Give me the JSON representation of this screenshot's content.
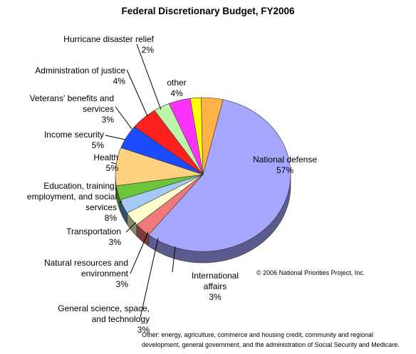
{
  "chart_data": {
    "type": "pie",
    "title": "Federal Discretionary Budget, FY2006",
    "unit": "%",
    "slices": [
      {
        "name": "National defense",
        "value": 57,
        "pct": "57%",
        "color": "#a7a7ff",
        "side": "#5b5b8f"
      },
      {
        "name": "International affairs",
        "value": 3,
        "pct": "3%",
        "color": "#f07a7a",
        "side": "#7a3b3b"
      },
      {
        "name": "General science, space, and technology",
        "value": 3,
        "pct": "3%",
        "color": "#ffffcc",
        "side": "#8a8a6a"
      },
      {
        "name": "Natural resources and environment",
        "value": 3,
        "pct": "3%",
        "color": "#a7c9f7",
        "side": "#2f4f6f"
      },
      {
        "name": "Transportation",
        "value": 3,
        "pct": "3%",
        "color": "#6bc63b",
        "side": "#3a6e1f"
      },
      {
        "name": "Education, training, employment, and social services",
        "value": 8,
        "pct": "8%",
        "color": "#ffd27f",
        "side": "#8a6a3a"
      },
      {
        "name": "Health",
        "value": 5,
        "pct": "5%",
        "color": "#1d4bff",
        "side": "#142a8a"
      },
      {
        "name": "Income security",
        "value": 5,
        "pct": "5%",
        "color": "#ff2020",
        "side": "#8a1010"
      },
      {
        "name": "Veterans' benefits and services",
        "value": 3,
        "pct": "3%",
        "color": "#bff5a8",
        "side": "#6a8a5c"
      },
      {
        "name": "Administration of justice",
        "value": 4,
        "pct": "4%",
        "color": "#ff33ff",
        "side": "#8a1d8a"
      },
      {
        "name": "Hurricane disaster relief",
        "value": 2,
        "pct": "2%",
        "color": "#ffff00",
        "side": "#8a8a00"
      },
      {
        "name": "other",
        "value": 4,
        "pct": "4%",
        "color": "#ffb347",
        "side": "#8a5a1d"
      }
    ],
    "labels": [
      {
        "lines": [
          "National defense"
        ],
        "pct": "57%"
      },
      {
        "lines": [
          "International",
          "affairs"
        ],
        "pct": "3%"
      },
      {
        "lines": [
          "General science, space,",
          "and technology"
        ],
        "pct": "3%"
      },
      {
        "lines": [
          "Natural resources and",
          "environment"
        ],
        "pct": "3%"
      },
      {
        "lines": [
          "Transportation"
        ],
        "pct": "3%"
      },
      {
        "lines": [
          "Education, training,",
          "employment, and social",
          "services"
        ],
        "pct": "8%"
      },
      {
        "lines": [
          "Health"
        ],
        "pct": "5%"
      },
      {
        "lines": [
          "Income security"
        ],
        "pct": "5%"
      },
      {
        "lines": [
          "Veterans' benefits and",
          "services"
        ],
        "pct": "3%"
      },
      {
        "lines": [
          "Administration of justice"
        ],
        "pct": "4%"
      },
      {
        "lines": [
          "Hurricane disaster relief"
        ],
        "pct": "2%"
      },
      {
        "lines": [
          "other"
        ],
        "pct": "4%"
      }
    ]
  },
  "copyright": "© 2006 National Priorities Project, Inc.",
  "footnote": "Other:  energy, agriculture, commerce and housing credit, community and regional development, general government, and the administration of Social Security and Medicare."
}
